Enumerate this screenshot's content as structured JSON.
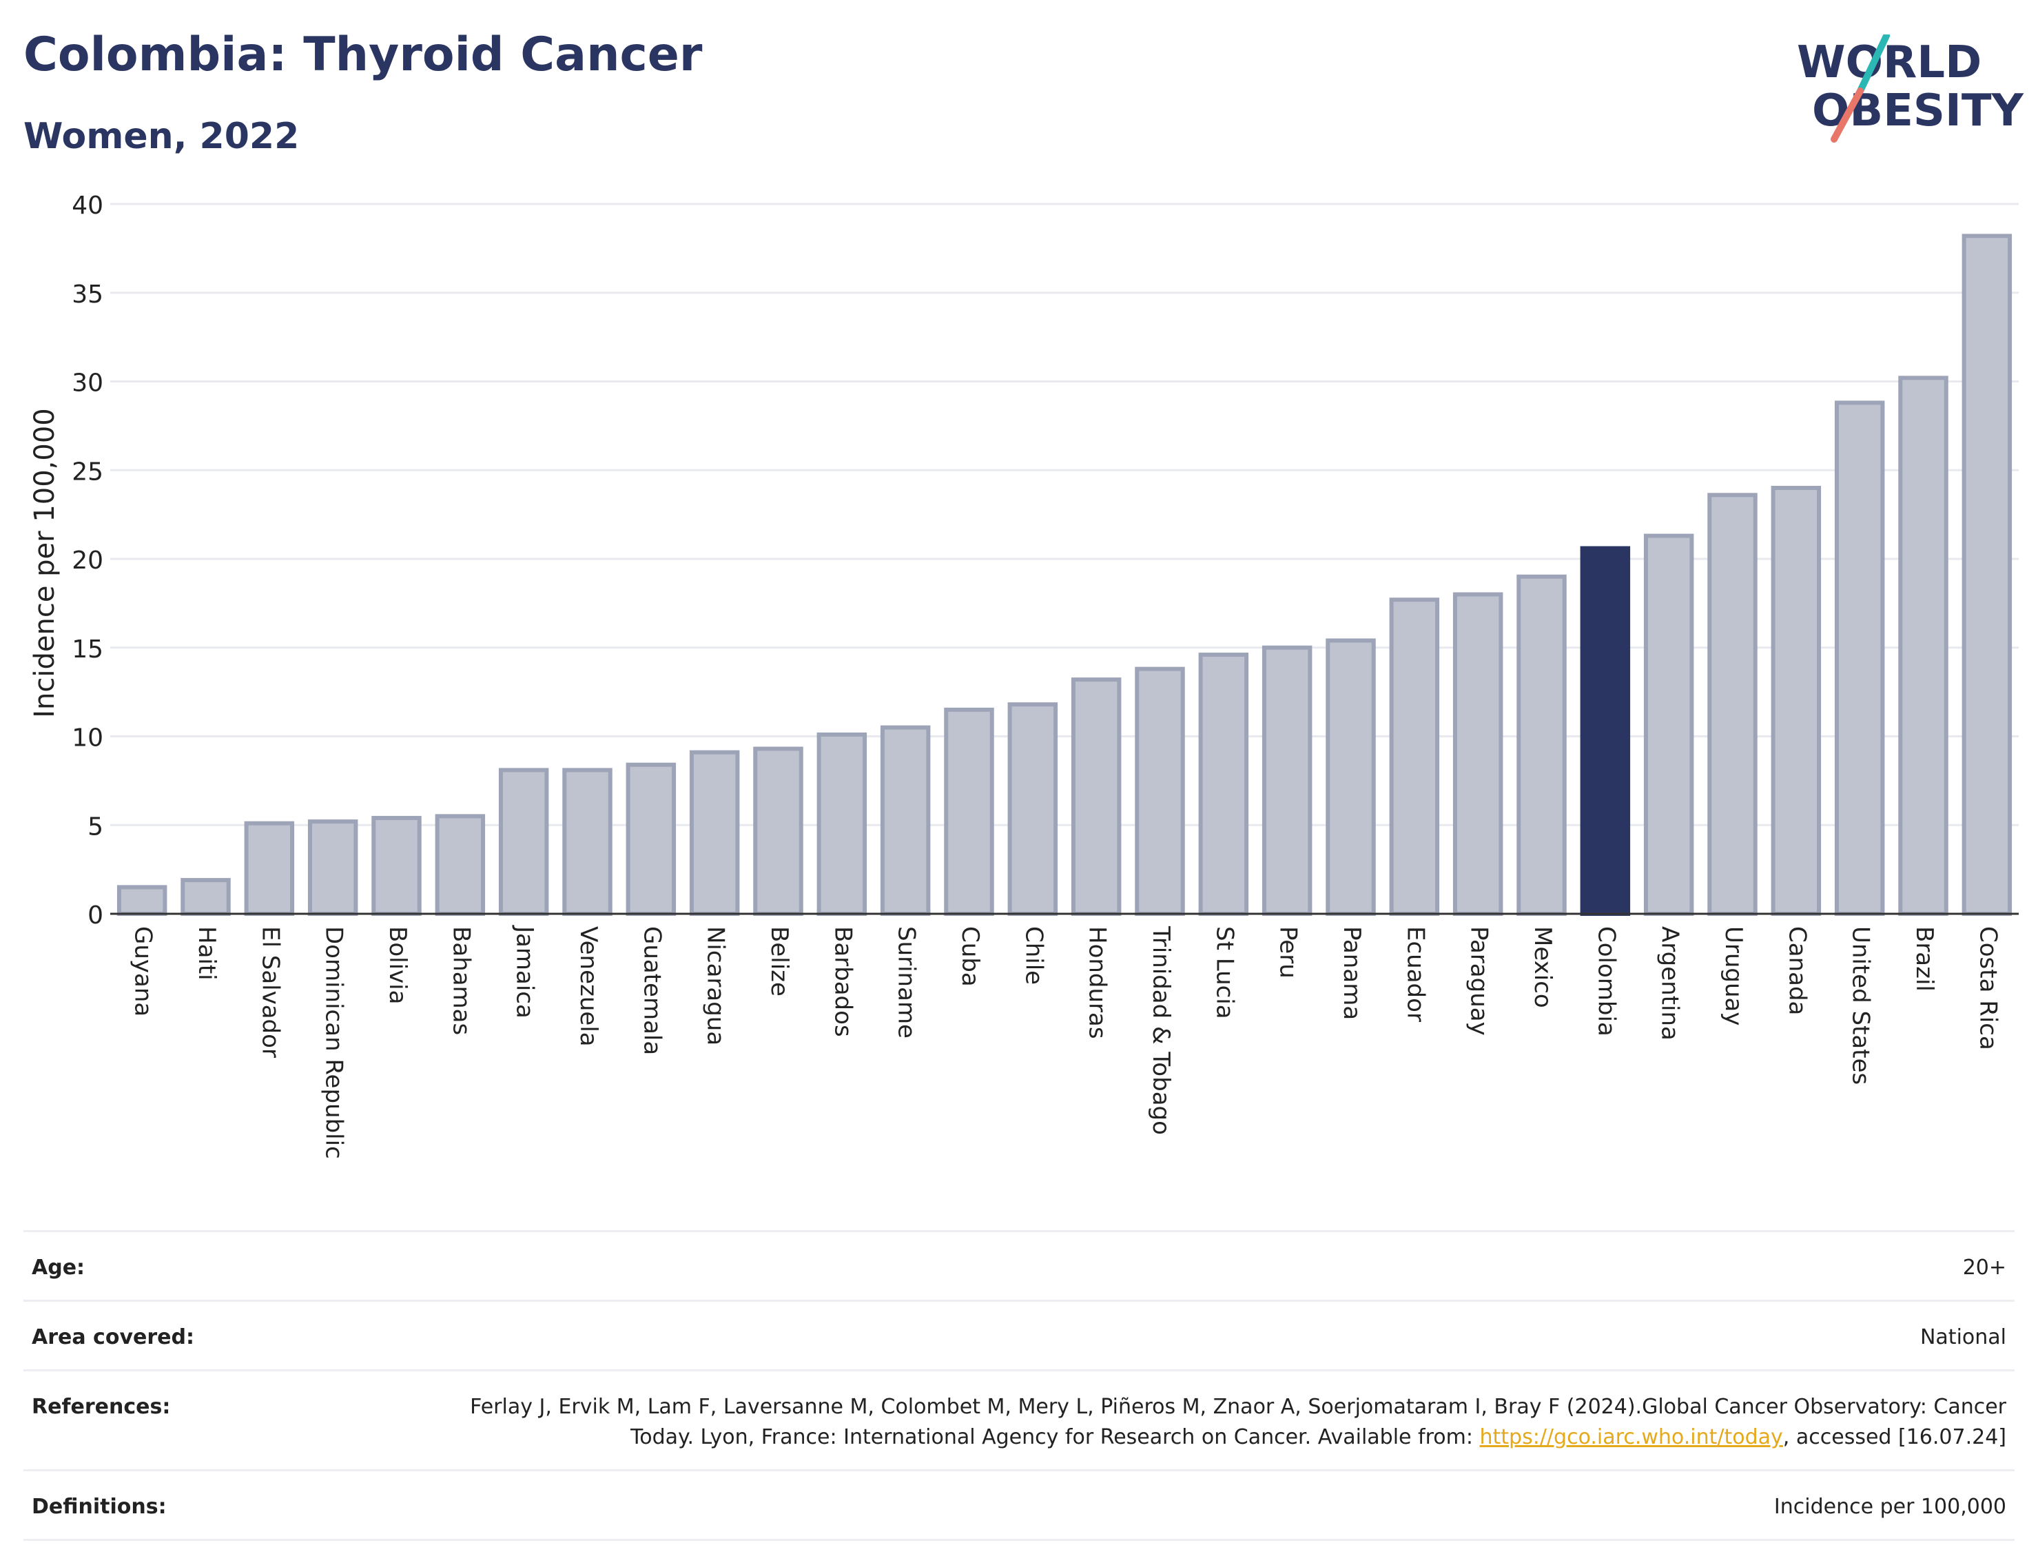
{
  "header": {
    "title": "Colombia: Thyroid Cancer",
    "subtitle": "Women, 2022"
  },
  "logo": {
    "line1": "WORLD",
    "line2": "OBESITY",
    "colors": {
      "text": "#2b3562",
      "slash_teal": "#2bb7b3",
      "slash_coral": "#e8776a"
    }
  },
  "colors": {
    "bar_fill": "#bfc3cf",
    "bar_stroke": "#9ea4b8",
    "highlight": "#2b3562",
    "grid": "#e8eaef",
    "axis": "#333333"
  },
  "chart_data": {
    "type": "bar",
    "title": "Colombia: Thyroid Cancer",
    "subtitle": "Women, 2022",
    "xlabel": "",
    "ylabel": "Incidence per 100,000",
    "ylim": [
      0,
      40
    ],
    "yticks": [
      0,
      5,
      10,
      15,
      20,
      25,
      30,
      35,
      40
    ],
    "grid": true,
    "highlight": "Colombia",
    "categories": [
      "Guyana",
      "Haiti",
      "El Salvador",
      "Dominican Republic",
      "Bolivia",
      "Bahamas",
      "Jamaica",
      "Venezuela",
      "Guatemala",
      "Nicaragua",
      "Belize",
      "Barbados",
      "Suriname",
      "Cuba",
      "Chile",
      "Honduras",
      "Trinidad & Tobago",
      "St Lucia",
      "Peru",
      "Panama",
      "Ecuador",
      "Paraguay",
      "Mexico",
      "Colombia",
      "Argentina",
      "Uruguay",
      "Canada",
      "United States",
      "Brazil",
      "Costa Rica"
    ],
    "values": [
      1.5,
      1.9,
      5.1,
      5.2,
      5.4,
      5.5,
      8.1,
      8.1,
      8.4,
      9.1,
      9.3,
      10.1,
      10.5,
      11.5,
      11.8,
      13.2,
      13.8,
      14.6,
      15.0,
      15.4,
      17.7,
      18.0,
      19.0,
      20.6,
      21.3,
      23.6,
      24.0,
      28.8,
      30.2,
      38.2
    ]
  },
  "meta": {
    "age_label": "Age:",
    "age_value": "20+",
    "area_label": "Area covered:",
    "area_value": "National",
    "references_label": "References:",
    "references_text": "Ferlay J, Ervik M, Lam F, Laversanne M, Colombet M, Mery L, Piñeros M, Znaor A, Soerjomataram I, Bray F (2024).Global Cancer Observatory: Cancer Today. Lyon, France: International Agency for Research on Cancer. Available from:",
    "references_link": "https://gco.iarc.who.int/today",
    "references_suffix": ", accessed [16.07.24]",
    "definitions_label": "Definitions:",
    "definitions_value": "Incidence per 100,000"
  }
}
